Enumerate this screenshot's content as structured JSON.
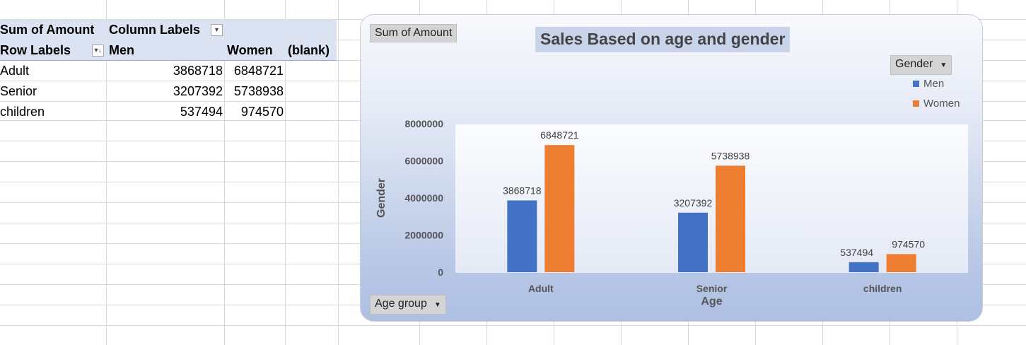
{
  "pivot": {
    "header1": {
      "title": "Sum of Amount",
      "column_labels": "Column Labels"
    },
    "header2": {
      "row_labels": "Row Labels",
      "col1": "Men",
      "col2": "Women",
      "col3": "(blank)"
    },
    "rows": [
      {
        "label": "Adult",
        "men": "3868718",
        "women": "6848721"
      },
      {
        "label": "Senior",
        "men": "3207392",
        "women": "5738938"
      },
      {
        "label": "children",
        "men": "537494",
        "women": "974570"
      }
    ]
  },
  "chart": {
    "value_field_button": "Sum of Amount",
    "legend_field_button": "Gender",
    "axis_field_button": "Age group",
    "legend": [
      {
        "name": "Men",
        "color": "#4472c4"
      },
      {
        "name": "Women",
        "color": "#ed7d31"
      }
    ]
  },
  "chart_data": {
    "type": "bar",
    "title": "Sales Based on age and gender",
    "xlabel": "Age",
    "ylabel": "Gender",
    "categories": [
      "Adult",
      "Senior",
      "children"
    ],
    "series": [
      {
        "name": "Men",
        "values": [
          3868718,
          3207392,
          537494
        ],
        "color": "#4472c4"
      },
      {
        "name": "Women",
        "values": [
          6848721,
          5738938,
          974570
        ],
        "color": "#ed7d31"
      }
    ],
    "ylim": [
      0,
      8000000
    ],
    "yticks": [
      "0",
      "2000000",
      "4000000",
      "6000000",
      "8000000"
    ],
    "legend": "top-right",
    "grid": false,
    "data_labels": true
  }
}
